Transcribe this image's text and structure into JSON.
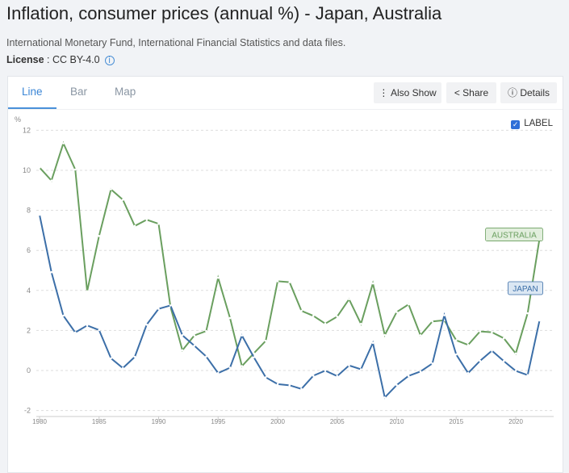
{
  "header": {
    "title": "Inflation, consumer prices (annual %) - Japan, Australia",
    "source": "International Monetary Fund, International Financial Statistics and data files.",
    "license_label": "License",
    "license_value": " : CC BY-4.0"
  },
  "tabs": [
    {
      "label": "Line"
    },
    {
      "label": "Bar"
    },
    {
      "label": "Map"
    }
  ],
  "buttons": {
    "also_show": "Also Show",
    "share": "Share",
    "details": "Details"
  },
  "label_toggle": {
    "label": "LABEL",
    "checked": true
  },
  "chart_data": {
    "type": "line",
    "ylabel": "%",
    "ylim": [
      -2,
      12
    ],
    "yticks": [
      -2,
      0,
      2,
      4,
      6,
      8,
      10,
      12
    ],
    "xticks": [
      1980,
      1985,
      1990,
      1995,
      2000,
      2005,
      2010,
      2015,
      2020
    ],
    "grid": true,
    "x": [
      1980,
      1981,
      1982,
      1983,
      1984,
      1985,
      1986,
      1987,
      1988,
      1989,
      1990,
      1991,
      1992,
      1993,
      1994,
      1995,
      1996,
      1997,
      1998,
      1999,
      2000,
      2001,
      2002,
      2003,
      2004,
      2005,
      2006,
      2007,
      2008,
      2009,
      2010,
      2011,
      2012,
      2013,
      2014,
      2015,
      2016,
      2017,
      2018,
      2019,
      2020,
      2021,
      2022
    ],
    "series": [
      {
        "name": "AUSTRALIA",
        "color": "#6a9f5f",
        "values": [
          10.14,
          9.49,
          11.35,
          10.04,
          3.96,
          6.72,
          9.05,
          8.53,
          7.22,
          7.53,
          7.33,
          3.18,
          1.01,
          1.75,
          1.97,
          4.63,
          2.62,
          0.22,
          0.86,
          1.48,
          4.46,
          4.41,
          2.98,
          2.73,
          2.34,
          2.69,
          3.56,
          2.33,
          4.35,
          1.77,
          2.92,
          3.3,
          1.76,
          2.45,
          2.51,
          1.51,
          1.28,
          1.95,
          1.91,
          1.61,
          0.85,
          2.86,
          6.59
        ]
      },
      {
        "name": "JAPAN",
        "color": "#3c6fa8",
        "values": [
          7.78,
          4.91,
          2.74,
          1.9,
          2.25,
          2.02,
          0.61,
          0.12,
          0.68,
          2.29,
          3.08,
          3.25,
          1.76,
          1.24,
          0.7,
          -0.13,
          0.14,
          1.75,
          0.66,
          -0.34,
          -0.68,
          -0.74,
          -0.92,
          -0.26,
          -0.01,
          -0.28,
          0.25,
          0.06,
          1.38,
          -1.35,
          -0.73,
          -0.27,
          -0.05,
          0.35,
          2.76,
          0.8,
          -0.13,
          0.48,
          0.99,
          0.47,
          -0.02,
          -0.23,
          2.5
        ]
      }
    ]
  }
}
